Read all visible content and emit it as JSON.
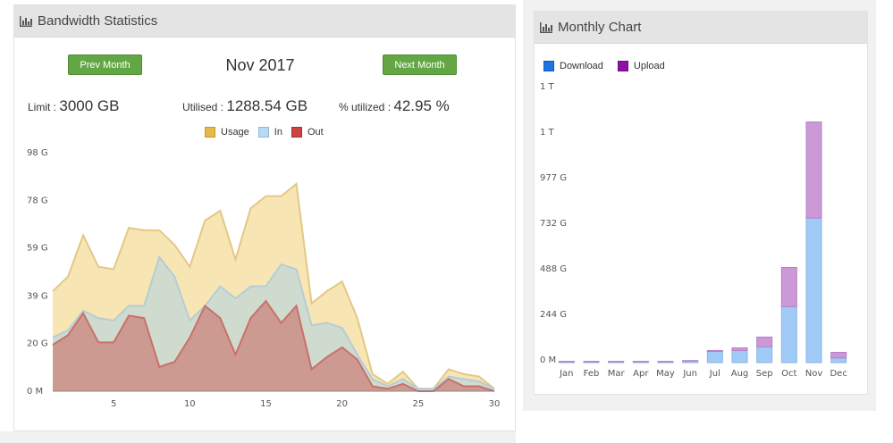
{
  "bandwidth": {
    "title": "Bandwidth Statistics",
    "prev_label": "Prev Month",
    "next_label": "Next Month",
    "month": "Nov 2017",
    "limit_label": "Limit :",
    "limit_value": "3000 GB",
    "utilised_label": "Utilised :",
    "utilised_value": "1288.54 GB",
    "pct_label": "% utilized :",
    "pct_value": "42.95 %",
    "legend": [
      {
        "name": "Usage",
        "color": "#f4d98a"
      },
      {
        "name": "In",
        "color": "#a9cdef"
      },
      {
        "name": "Out",
        "color": "#d46a6a"
      }
    ]
  },
  "monthly": {
    "title": "Monthly Chart",
    "legend": [
      {
        "name": "Download",
        "color": "#1d74e3"
      },
      {
        "name": "Upload",
        "color": "#8e12a4"
      }
    ]
  },
  "chart_data": [
    {
      "type": "area",
      "x": [
        1,
        2,
        3,
        4,
        5,
        6,
        7,
        8,
        9,
        10,
        11,
        12,
        13,
        14,
        15,
        16,
        17,
        18,
        19,
        20,
        21,
        22,
        23,
        24,
        25,
        26,
        27,
        28,
        29,
        30
      ],
      "xticks": [
        5,
        10,
        15,
        20,
        25,
        30
      ],
      "ytick_labels": [
        "0 M",
        "20 G",
        "39 G",
        "59 G",
        "78 G",
        "98 G"
      ],
      "ytick_values": [
        0,
        19.6,
        39.1,
        58.7,
        78.2,
        97.8
      ],
      "ylim": [
        0,
        97.8
      ],
      "xlim": [
        1,
        30
      ],
      "series": [
        {
          "name": "Usage",
          "values": [
            41,
            47,
            64,
            51,
            50,
            67,
            66,
            66,
            60,
            51,
            70,
            74,
            54,
            75,
            80,
            80,
            85,
            36,
            41,
            45,
            30,
            7,
            3,
            8,
            1,
            1,
            9,
            7,
            6,
            1
          ]
        },
        {
          "name": "In",
          "values": [
            22,
            25,
            33,
            30,
            29,
            35,
            35,
            55,
            47,
            29,
            35,
            43,
            38,
            43,
            43,
            52,
            50,
            27,
            28,
            26,
            15,
            5,
            2,
            5,
            1,
            1,
            6,
            5,
            4,
            1
          ]
        },
        {
          "name": "Out",
          "values": [
            19,
            23,
            32,
            20,
            20,
            31,
            30,
            10,
            12,
            22,
            35,
            30,
            15,
            30,
            37,
            28,
            35,
            9,
            14,
            18,
            13,
            2,
            1,
            3,
            0,
            0,
            5,
            2,
            2,
            0
          ]
        }
      ]
    },
    {
      "type": "bar",
      "categories": [
        "Jan",
        "Feb",
        "Mar",
        "Apr",
        "May",
        "Jun",
        "Jul",
        "Aug",
        "Sep",
        "Oct",
        "Nov",
        "Dec"
      ],
      "ytick_labels": [
        "0 M",
        "244 G",
        "488 G",
        "732 G",
        "977 G",
        "1 T",
        "1 T"
      ],
      "ytick_values": [
        0,
        244,
        488,
        732,
        977,
        1221,
        1465
      ],
      "ylim": [
        0,
        1465
      ],
      "stacked": true,
      "series": [
        {
          "name": "Download",
          "values": [
            5,
            5,
            5,
            5,
            5,
            9,
            60,
            65,
            85,
            300,
            775,
            25
          ]
        },
        {
          "name": "Upload",
          "values": [
            2,
            2,
            2,
            2,
            2,
            2,
            5,
            14,
            52,
            210,
            515,
            30
          ]
        }
      ]
    }
  ]
}
